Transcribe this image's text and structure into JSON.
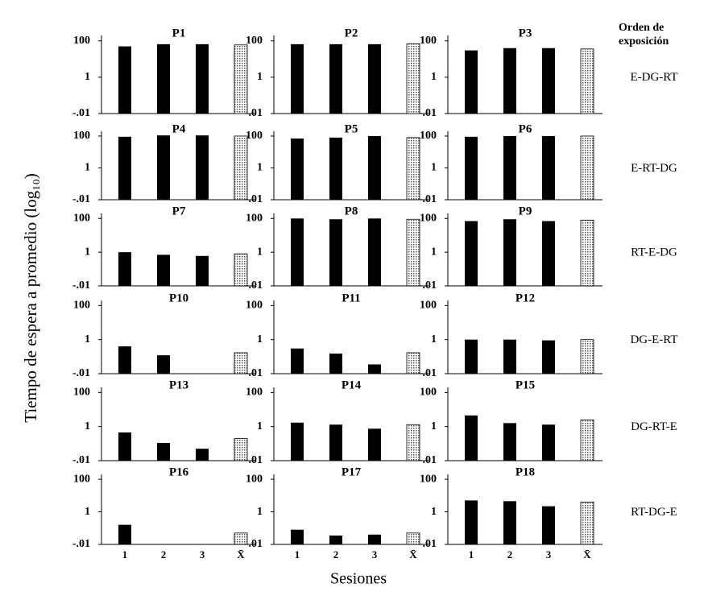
{
  "figure": {
    "ylabel": "Tiempo de espera a promedio (log₁₀)",
    "xlabel": "Sesiones",
    "order_title": "Orden de exposición",
    "row_labels": [
      "E-DG-RT",
      "E-RT-DG",
      "RT-E-DG",
      "DG-E-RT",
      "DG-RT-E",
      "RT-DG-E"
    ]
  },
  "chart_data": [
    {
      "type": "bar",
      "title": "P1",
      "categories": [
        null,
        null,
        null,
        null
      ],
      "values": [
        50,
        66,
        66,
        60
      ],
      "color": "#000000",
      "log": true,
      "ylim": [
        0.01,
        200
      ],
      "yticks": [
        100,
        1,
        {
          "value": 0.01,
          "label": "-.01"
        }
      ]
    },
    {
      "type": "bar",
      "title": "P2",
      "categories": [
        null,
        null,
        null,
        null
      ],
      "values": [
        66,
        66,
        66,
        70
      ],
      "color": "#000000",
      "log": true,
      "ylim": [
        0.01,
        200
      ],
      "yticks": [
        100,
        1,
        {
          "value": 0.01,
          "label": "-.01"
        }
      ]
    },
    {
      "type": "bar",
      "title": "P3",
      "categories": [
        null,
        null,
        null,
        null
      ],
      "values": [
        30,
        40,
        40,
        36
      ],
      "color": "#000000",
      "log": true,
      "ylim": [
        0.01,
        200
      ],
      "yticks": [
        100,
        1,
        {
          "value": 0.01,
          "label": "-.01"
        }
      ]
    },
    {
      "type": "bar",
      "title": "P4",
      "categories": [
        null,
        null,
        null,
        null
      ],
      "values": [
        90,
        110,
        110,
        100
      ],
      "color": "#000000",
      "log": true,
      "ylim": [
        0.01,
        200
      ],
      "yticks": [
        100,
        1,
        {
          "value": 0.01,
          "label": "-.01"
        }
      ]
    },
    {
      "type": "bar",
      "title": "P5",
      "categories": [
        null,
        null,
        null,
        null
      ],
      "values": [
        70,
        80,
        100,
        80
      ],
      "color": "#000000",
      "log": true,
      "ylim": [
        0.01,
        200
      ],
      "yticks": [
        100,
        1,
        {
          "value": 0.01,
          "label": "-.01"
        }
      ]
    },
    {
      "type": "bar",
      "title": "P6",
      "categories": [
        null,
        null,
        null,
        null
      ],
      "values": [
        90,
        100,
        100,
        100
      ],
      "color": "#000000",
      "log": true,
      "ylim": [
        0.01,
        200
      ],
      "yticks": [
        100,
        1,
        {
          "value": 0.01,
          "label": "-.01"
        }
      ]
    },
    {
      "type": "bar",
      "title": "P7",
      "categories": [
        null,
        null,
        null,
        null
      ],
      "values": [
        1,
        0.7,
        0.6,
        0.8
      ],
      "color": "#000000",
      "log": true,
      "ylim": [
        0.01,
        200
      ],
      "yticks": [
        100,
        1,
        {
          "value": 0.01,
          "label": "-.01"
        }
      ]
    },
    {
      "type": "bar",
      "title": "P8",
      "categories": [
        null,
        null,
        null,
        null
      ],
      "values": [
        100,
        90,
        100,
        90
      ],
      "color": "#000000",
      "log": true,
      "ylim": [
        0.01,
        200
      ],
      "yticks": [
        100,
        1,
        {
          "value": 0.01,
          "label": "-.01"
        }
      ]
    },
    {
      "type": "bar",
      "title": "P9",
      "categories": [
        null,
        null,
        null,
        null
      ],
      "values": [
        70,
        90,
        70,
        80
      ],
      "color": "#000000",
      "log": true,
      "ylim": [
        0.01,
        200
      ],
      "yticks": [
        100,
        1,
        {
          "value": 0.01,
          "label": "-.01"
        }
      ]
    },
    {
      "type": "bar",
      "title": "P10",
      "categories": [
        null,
        null,
        null,
        null
      ],
      "values": [
        0.4,
        0.12,
        null,
        0.17
      ],
      "color": "#000000",
      "log": true,
      "ylim": [
        0.01,
        200
      ],
      "yticks": [
        100,
        1,
        {
          "value": 0.01,
          "label": "-.01"
        }
      ]
    },
    {
      "type": "bar",
      "title": "P11",
      "categories": [
        null,
        null,
        null,
        null
      ],
      "values": [
        0.3,
        0.15,
        0.035,
        0.17
      ],
      "color": "#000000",
      "log": true,
      "ylim": [
        0.01,
        200
      ],
      "yticks": [
        100,
        1,
        {
          "value": 0.01,
          "label": "-.01"
        }
      ]
    },
    {
      "type": "bar",
      "title": "P12",
      "categories": [
        null,
        null,
        null,
        null
      ],
      "values": [
        1,
        1,
        0.9,
        1
      ],
      "color": "#000000",
      "log": true,
      "ylim": [
        0.01,
        200
      ],
      "yticks": [
        100,
        1,
        {
          "value": 0.01,
          "label": "-.01"
        }
      ]
    },
    {
      "type": "bar",
      "title": "P13",
      "categories": [
        null,
        null,
        null,
        null
      ],
      "values": [
        0.45,
        0.11,
        0.05,
        0.2
      ],
      "color": "#000000",
      "log": true,
      "ylim": [
        0.01,
        200
      ],
      "yticks": [
        100,
        1,
        {
          "value": 0.01,
          "label": "-.01"
        }
      ]
    },
    {
      "type": "bar",
      "title": "P14",
      "categories": [
        null,
        null,
        null,
        null
      ],
      "values": [
        1.7,
        1.3,
        0.75,
        1.3
      ],
      "color": "#000000",
      "log": true,
      "ylim": [
        0.01,
        200
      ],
      "yticks": [
        100,
        1,
        {
          "value": 0.01,
          "label": "-.01"
        }
      ]
    },
    {
      "type": "bar",
      "title": "P15",
      "categories": [
        null,
        null,
        null,
        null
      ],
      "values": [
        4.5,
        1.6,
        1.3,
        2.5
      ],
      "color": "#000000",
      "log": true,
      "ylim": [
        0.01,
        200
      ],
      "yticks": [
        100,
        1,
        {
          "value": 0.01,
          "label": "-.01"
        }
      ]
    },
    {
      "type": "bar",
      "title": "P16",
      "categories": [
        "1",
        "2",
        "3",
        "X̄"
      ],
      "values": [
        0.16,
        null,
        null,
        0.05
      ],
      "color": "#000000",
      "log": true,
      "ylim": [
        0.01,
        200
      ],
      "yticks": [
        100,
        1,
        {
          "value": 0.01,
          "label": "-.01"
        }
      ]
    },
    {
      "type": "bar",
      "title": "P17",
      "categories": [
        "1",
        "2",
        "3",
        "X̄"
      ],
      "values": [
        0.08,
        0.035,
        0.04,
        0.05
      ],
      "color": "#000000",
      "log": true,
      "ylim": [
        0.01,
        200
      ],
      "yticks": [
        100,
        1,
        {
          "value": 0.01,
          "label": "-.01"
        }
      ]
    },
    {
      "type": "bar",
      "title": "P18",
      "categories": [
        "1",
        "2",
        "3",
        "X̄"
      ],
      "values": [
        5,
        4.5,
        2.2,
        4
      ],
      "color": "#000000",
      "log": true,
      "ylim": [
        0.01,
        200
      ],
      "yticks": [
        100,
        1,
        {
          "value": 0.01,
          "label": "-.01"
        }
      ]
    }
  ]
}
